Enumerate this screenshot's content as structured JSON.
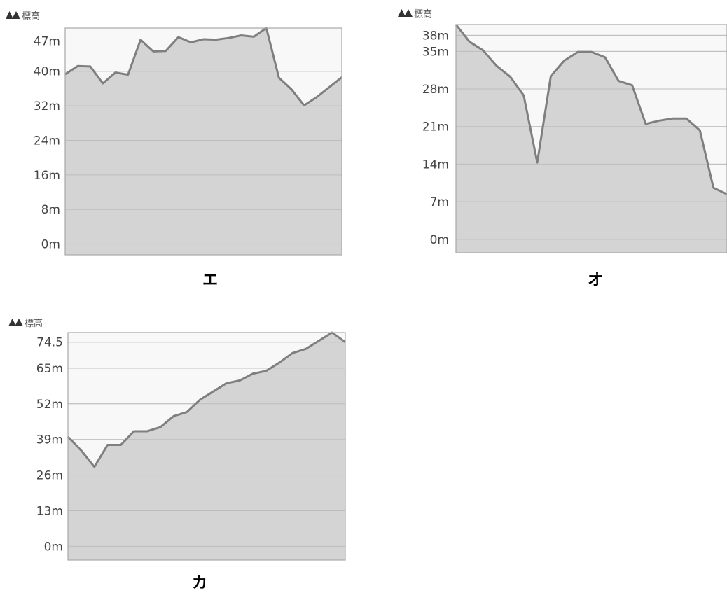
{
  "header_label": "標高",
  "colors": {
    "area": "#d4d4d4",
    "line": "#7f7f7f",
    "plot_bg": "#f8f8f8",
    "border": "#a8a8a8",
    "grid": "#c8c8c8",
    "tick_text": "#444444"
  },
  "chart_data": [
    {
      "type": "area",
      "caption": "エ",
      "ylabel": "標高",
      "ylim": [
        -2.5,
        50
      ],
      "yticks": [
        0,
        8,
        16,
        24,
        32,
        40,
        47
      ],
      "ytick_labels": [
        "0m",
        "8m",
        "16m",
        "24m",
        "32m",
        "40m",
        "47m"
      ],
      "values": [
        39.3,
        41.2,
        41.1,
        37.2,
        39.7,
        39.2,
        47.3,
        44.6,
        44.7,
        47.9,
        46.7,
        47.4,
        47.3,
        47.7,
        48.3,
        48.0,
        50.0,
        38.5,
        35.8,
        32.1,
        34.0,
        36.3,
        38.6
      ]
    },
    {
      "type": "area",
      "caption": "オ",
      "ylabel": "標高",
      "ylim": [
        -2.5,
        40.0
      ],
      "yticks": [
        0,
        7,
        14,
        21,
        28,
        35,
        38
      ],
      "ytick_labels": [
        "0m",
        "7m",
        "14m",
        "21m",
        "28m",
        "35m",
        "38m"
      ],
      "values": [
        40.0,
        36.8,
        35.2,
        32.3,
        30.3,
        26.8,
        14.3,
        30.4,
        33.3,
        34.9,
        34.9,
        33.9,
        29.5,
        28.7,
        21.5,
        22.1,
        22.5,
        22.5,
        20.3,
        9.6,
        8.4
      ]
    },
    {
      "type": "area",
      "caption": "カ",
      "ylabel": "標高",
      "ylim": [
        -5,
        78
      ],
      "yticks": [
        0,
        13,
        26,
        39,
        52,
        65,
        74.5
      ],
      "ytick_labels": [
        "0m",
        "13m",
        "26m",
        "39m",
        "52m",
        "65m",
        "74.5"
      ],
      "values": [
        40.0,
        35.0,
        29.0,
        37.0,
        37.0,
        42.0,
        42.0,
        43.5,
        47.5,
        49.0,
        53.5,
        56.5,
        59.5,
        60.5,
        63.0,
        64.0,
        67.0,
        70.5,
        72.0,
        75.0,
        78.0,
        74.5
      ]
    }
  ]
}
